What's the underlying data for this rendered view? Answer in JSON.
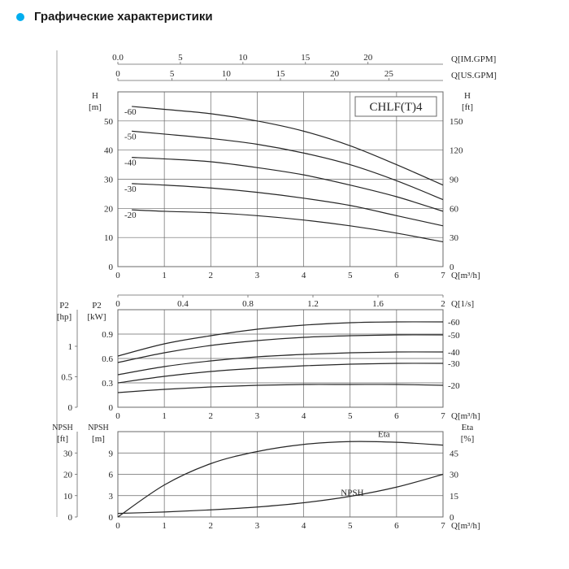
{
  "header": {
    "bullet_color": "#00aeef",
    "title": "Графические характеристики",
    "title_color": "#1a1a1a"
  },
  "global": {
    "background": "#ffffff",
    "line_color": "#262626",
    "grid_color": "#686868",
    "text_color": "#262626",
    "model_label": "CHLF(T)4",
    "axis_fontsize": 11,
    "label_fontsize": 11,
    "line_width": 1.2
  },
  "chart1": {
    "type": "line",
    "x_bottom_label": "Q[m³/h]",
    "x_bottom_min": 0,
    "x_bottom_max": 7,
    "x_bottom_ticks": [
      0,
      1,
      2,
      3,
      4,
      5,
      6,
      7
    ],
    "x_top1_label": "Q[US.GPM]",
    "x_top1_min": 0,
    "x_top1_max": 30,
    "x_top1_ticks": [
      0,
      5,
      10,
      15,
      20,
      25
    ],
    "x_top2_label": "Q[IM.GPM]",
    "x_top2_min": 0,
    "x_top2_max": 26,
    "x_top2_ticks": [
      0.0,
      5,
      10,
      15,
      20
    ],
    "x_bottom2_label": "Q[1/s]",
    "x_bottom2_min": 0,
    "x_bottom2_max": 2.0,
    "x_bottom2_ticks": [
      0,
      0.4,
      0.8,
      1.2,
      1.6,
      2.0
    ],
    "y_left_label": "H",
    "y_left_unit": "[m]",
    "y_left_min": 0,
    "y_left_max": 60,
    "y_left_ticks": [
      0,
      10,
      20,
      30,
      40,
      50
    ],
    "y_right_label": "H",
    "y_right_unit": "[ft]",
    "y_right_min": 0,
    "y_right_max": 180,
    "y_right_ticks": [
      0,
      30,
      60,
      90,
      120,
      150
    ],
    "series": [
      {
        "name": "-60",
        "points": [
          [
            0.3,
            55
          ],
          [
            1,
            54
          ],
          [
            2,
            52.5
          ],
          [
            3,
            50
          ],
          [
            4,
            46.5
          ],
          [
            5,
            41.5
          ],
          [
            6,
            35
          ],
          [
            7,
            28
          ]
        ]
      },
      {
        "name": "-50",
        "points": [
          [
            0.3,
            46.5
          ],
          [
            1,
            45.5
          ],
          [
            2,
            44
          ],
          [
            3,
            42
          ],
          [
            4,
            39
          ],
          [
            5,
            35
          ],
          [
            6,
            29.5
          ],
          [
            7,
            23
          ]
        ]
      },
      {
        "name": "-40",
        "points": [
          [
            0.3,
            37.5
          ],
          [
            1,
            37
          ],
          [
            2,
            36
          ],
          [
            3,
            34
          ],
          [
            4,
            31.5
          ],
          [
            5,
            28
          ],
          [
            6,
            24
          ],
          [
            7,
            19
          ]
        ]
      },
      {
        "name": "-30",
        "points": [
          [
            0.3,
            28.5
          ],
          [
            1,
            28
          ],
          [
            2,
            27
          ],
          [
            3,
            25.5
          ],
          [
            4,
            23.5
          ],
          [
            5,
            21
          ],
          [
            6,
            17.5
          ],
          [
            7,
            14
          ]
        ]
      },
      {
        "name": "-20",
        "points": [
          [
            0.3,
            19.5
          ],
          [
            1,
            19
          ],
          [
            2,
            18.5
          ],
          [
            3,
            17.5
          ],
          [
            4,
            16
          ],
          [
            5,
            14
          ],
          [
            6,
            11.5
          ],
          [
            7,
            8.5
          ]
        ]
      }
    ]
  },
  "chart2": {
    "type": "line",
    "x_label": "Q[m³/h]",
    "x_min": 0,
    "x_max": 7,
    "x_ticks": [
      0,
      1,
      2,
      3,
      4,
      5,
      6,
      7
    ],
    "y_left_label": "P2",
    "y_left_unit": "[kW]",
    "y_left_min": 0,
    "y_left_max": 1.2,
    "y_left_ticks": [
      0,
      0.3,
      0.6,
      0.9
    ],
    "y_left2_label": "P2",
    "y_left2_unit": "[hp]",
    "y_left2_min": 0,
    "y_left2_max": 1.6,
    "y_left2_ticks": [
      0,
      0.5,
      1.0
    ],
    "series": [
      {
        "name": "-60",
        "points": [
          [
            0,
            0.63
          ],
          [
            1,
            0.78
          ],
          [
            2,
            0.88
          ],
          [
            3,
            0.96
          ],
          [
            4,
            1.01
          ],
          [
            5,
            1.04
          ],
          [
            6,
            1.05
          ],
          [
            7,
            1.05
          ]
        ]
      },
      {
        "name": "-50",
        "points": [
          [
            0,
            0.55
          ],
          [
            1,
            0.67
          ],
          [
            2,
            0.76
          ],
          [
            3,
            0.82
          ],
          [
            4,
            0.86
          ],
          [
            5,
            0.88
          ],
          [
            6,
            0.89
          ],
          [
            7,
            0.89
          ]
        ]
      },
      {
        "name": "-40",
        "points": [
          [
            0,
            0.4
          ],
          [
            1,
            0.5
          ],
          [
            2,
            0.57
          ],
          [
            3,
            0.62
          ],
          [
            4,
            0.65
          ],
          [
            5,
            0.67
          ],
          [
            6,
            0.68
          ],
          [
            7,
            0.68
          ]
        ]
      },
      {
        "name": "-30",
        "points": [
          [
            0,
            0.3
          ],
          [
            1,
            0.38
          ],
          [
            2,
            0.44
          ],
          [
            3,
            0.48
          ],
          [
            4,
            0.51
          ],
          [
            5,
            0.53
          ],
          [
            6,
            0.54
          ],
          [
            7,
            0.54
          ]
        ]
      },
      {
        "name": "-20",
        "points": [
          [
            0,
            0.18
          ],
          [
            1,
            0.22
          ],
          [
            2,
            0.25
          ],
          [
            3,
            0.27
          ],
          [
            4,
            0.28
          ],
          [
            5,
            0.28
          ],
          [
            6,
            0.28
          ],
          [
            7,
            0.27
          ]
        ]
      }
    ]
  },
  "chart3": {
    "type": "line",
    "x_label": "Q[m³/h]",
    "x_min": 0,
    "x_max": 7,
    "x_ticks": [
      0,
      1,
      2,
      3,
      4,
      5,
      6,
      7
    ],
    "y_left_label": "NPSH",
    "y_left_unit": "[m]",
    "y_left_min": 0,
    "y_left_max": 12,
    "y_left_ticks": [
      0,
      3,
      6,
      9
    ],
    "y_left2_label": "NPSH",
    "y_left2_unit": "[ft]",
    "y_left2_min": 0,
    "y_left2_max": 40,
    "y_left2_ticks": [
      0,
      10,
      20,
      30
    ],
    "y_right_label": "Eta",
    "y_right_unit": "[%]",
    "y_right_min": 0,
    "y_right_max": 60,
    "y_right_ticks": [
      0,
      15,
      30,
      45
    ],
    "series_eta": {
      "name": "Eta",
      "points": [
        [
          0,
          0
        ],
        [
          1,
          4.5
        ],
        [
          2,
          7.5
        ],
        [
          3,
          9.2
        ],
        [
          4,
          10.2
        ],
        [
          5,
          10.6
        ],
        [
          6,
          10.5
        ],
        [
          7,
          10.1
        ]
      ]
    },
    "series_npsh": {
      "name": "NPSH",
      "points": [
        [
          0,
          0.5
        ],
        [
          1,
          0.7
        ],
        [
          2,
          1.0
        ],
        [
          3,
          1.4
        ],
        [
          4,
          2.0
        ],
        [
          5,
          2.9
        ],
        [
          6,
          4.2
        ],
        [
          7,
          6.0
        ]
      ]
    }
  }
}
